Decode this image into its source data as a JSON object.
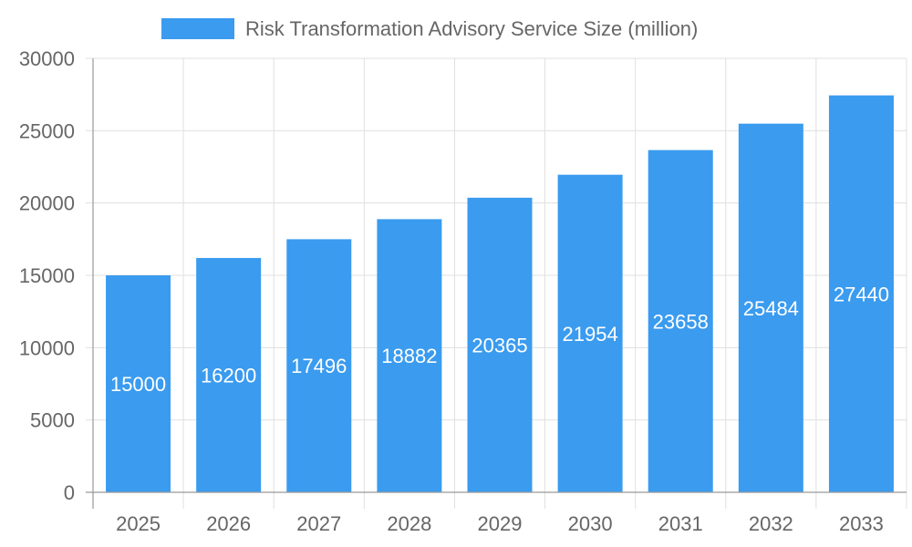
{
  "chart_data": {
    "type": "bar",
    "categories": [
      "2025",
      "2026",
      "2027",
      "2028",
      "2029",
      "2030",
      "2031",
      "2032",
      "2033"
    ],
    "series": [
      {
        "name": "Risk Transformation Advisory Service Size (million)",
        "values": [
          15000,
          16200,
          17496,
          18882,
          20365,
          21954,
          23658,
          25484,
          27440
        ],
        "color": "#3a9bef"
      }
    ],
    "title": "",
    "xlabel": "",
    "ylabel": "",
    "ylim": [
      0,
      30000
    ],
    "yticks": [
      "0",
      "5000",
      "10000",
      "15000",
      "20000",
      "25000",
      "30000"
    ],
    "grid": true,
    "legend": "top-center",
    "data_labels": "inside-center"
  }
}
